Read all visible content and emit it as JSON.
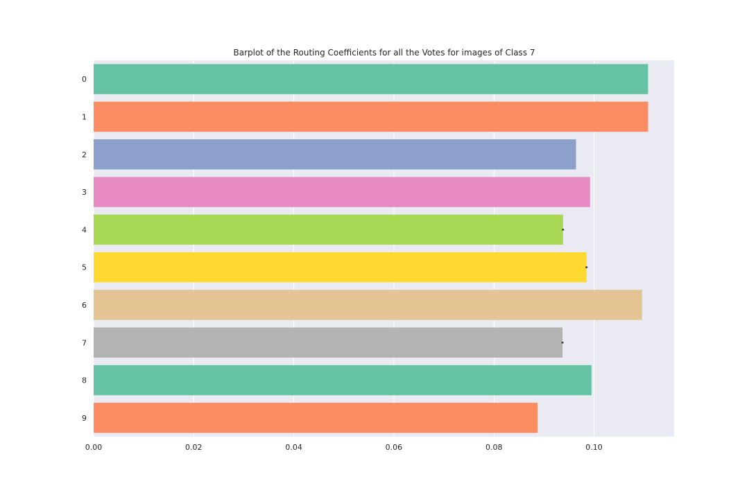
{
  "chart_data": {
    "type": "bar",
    "orientation": "horizontal",
    "title": "Barplot of the Routing Coefficients for all the Votes for images of Class 7",
    "xlabel": "",
    "ylabel": "",
    "categories": [
      "0",
      "1",
      "2",
      "3",
      "4",
      "5",
      "6",
      "7",
      "8",
      "9"
    ],
    "values": [
      0.1108,
      0.1108,
      0.0964,
      0.0992,
      0.0938,
      0.0985,
      0.1096,
      0.0937,
      0.0995,
      0.0887
    ],
    "error_bars": [
      0,
      0,
      0,
      0,
      0.0002,
      0.0002,
      0,
      0.0002,
      0,
      0
    ],
    "xlim": [
      0.0,
      0.116
    ],
    "xticks": [
      "0.00",
      "0.02",
      "0.04",
      "0.06",
      "0.08",
      "0.10"
    ],
    "xtick_values": [
      0.0,
      0.02,
      0.04,
      0.06,
      0.08,
      0.1
    ],
    "grid": true,
    "colors": [
      "#66c2a5",
      "#fc8d62",
      "#8da0cb",
      "#e78ac3",
      "#a6d854",
      "#ffd92f",
      "#e5c494",
      "#b3b3b3",
      "#66c2a5",
      "#fc8d62"
    ],
    "background_color": "#eaeaf2",
    "grid_color": "#ffffff"
  }
}
